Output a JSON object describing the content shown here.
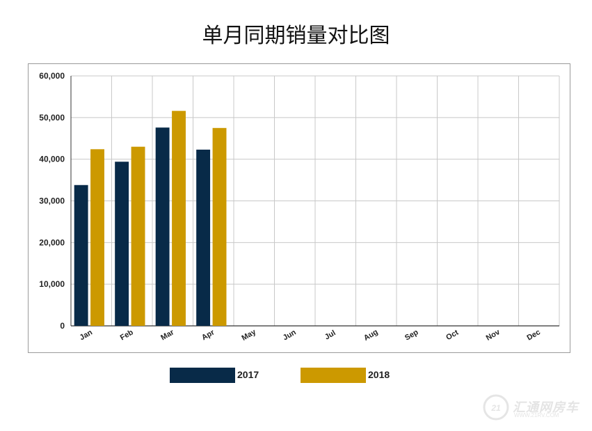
{
  "chart_data": {
    "type": "bar",
    "title": "单月同期销量对比图",
    "categories": [
      "Jan",
      "Feb",
      "Mar",
      "Apr",
      "May",
      "Jun",
      "Jul",
      "Aug",
      "Sep",
      "Oct",
      "Nov",
      "Dec"
    ],
    "series": [
      {
        "name": "2017",
        "color": "#082a48",
        "values": [
          33800,
          39400,
          47600,
          42300,
          null,
          null,
          null,
          null,
          null,
          null,
          null,
          null
        ]
      },
      {
        "name": "2018",
        "color": "#cc9900",
        "values": [
          42400,
          43000,
          51600,
          47500,
          null,
          null,
          null,
          null,
          null,
          null,
          null,
          null
        ]
      }
    ],
    "ylim": [
      0,
      60000
    ],
    "yticks": [
      "0",
      "10,000",
      "20,000",
      "30,000",
      "40,000",
      "50,000",
      "60,000"
    ],
    "ytick_values": [
      0,
      10000,
      20000,
      30000,
      40000,
      50000,
      60000
    ],
    "grid": true,
    "legend_position": "bottom"
  },
  "watermark": {
    "text": "汇通网房车",
    "url": "WWW.21RV.COM"
  }
}
